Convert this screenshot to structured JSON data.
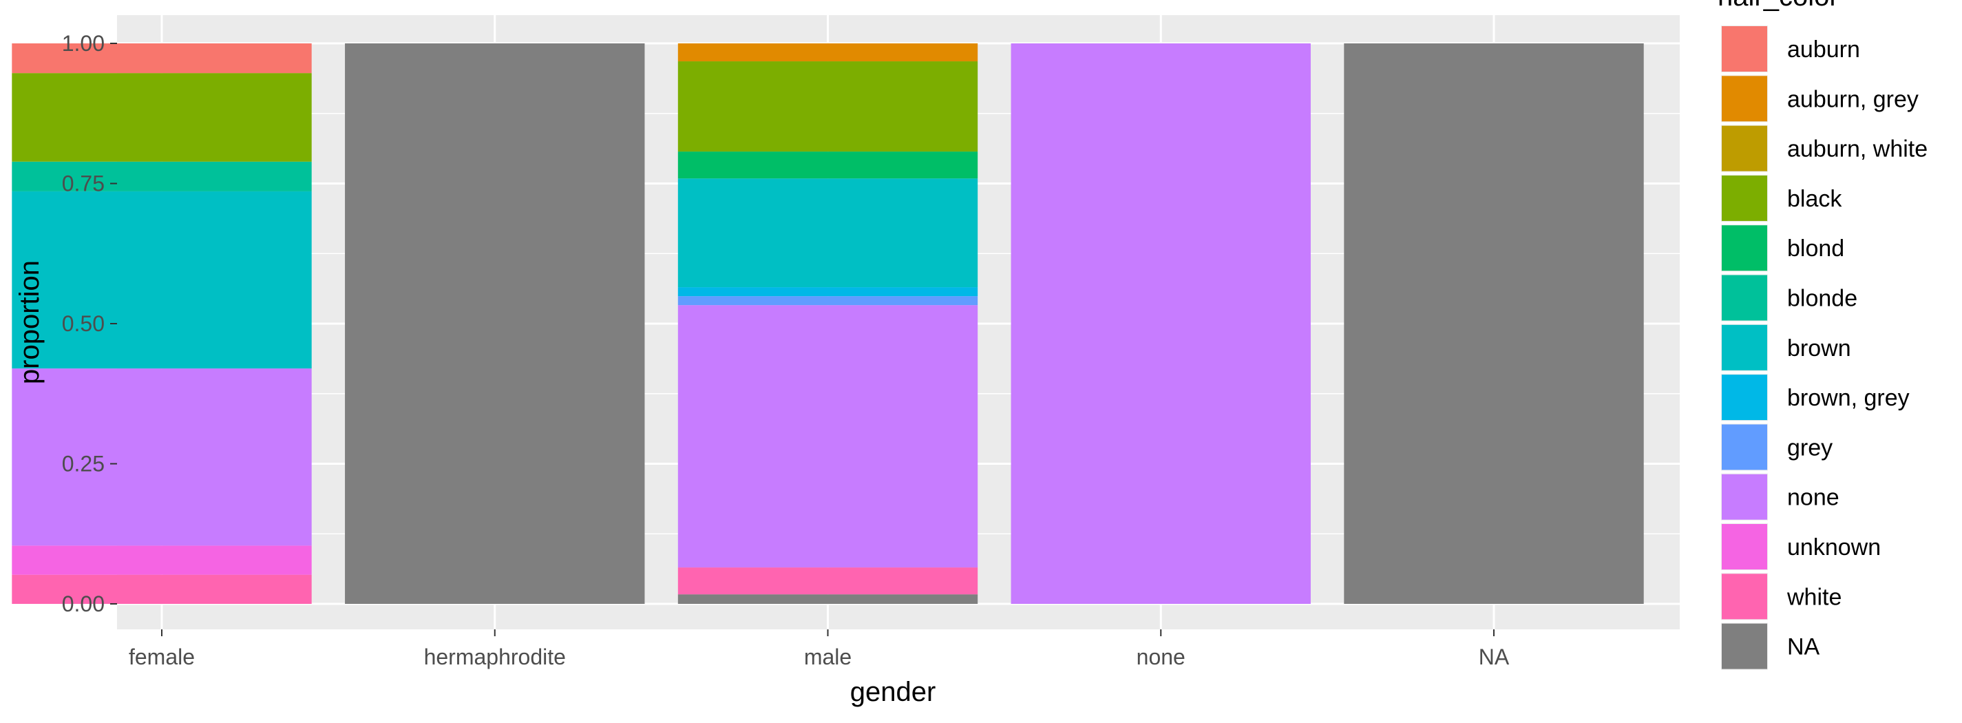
{
  "chart_data": {
    "type": "bar",
    "stacked": true,
    "categories": [
      "female",
      "hermaphrodite",
      "male",
      "none",
      "NA"
    ],
    "xlabel": "gender",
    "ylabel": "proportion",
    "ylim": [
      0,
      1
    ],
    "yticks": [
      "0.00",
      "0.25",
      "0.50",
      "0.75",
      "1.00"
    ],
    "grid": true,
    "legend_position": "right",
    "legend_title": "hair_color",
    "series": [
      {
        "name": "auburn",
        "color": "#F8766D",
        "values": [
          0.053,
          0,
          0,
          0,
          0
        ]
      },
      {
        "name": "auburn, grey",
        "color": "#E18A00",
        "values": [
          0,
          0,
          0.032,
          0,
          0
        ]
      },
      {
        "name": "auburn, white",
        "color": "#BE9C00",
        "values": [
          0,
          0,
          0,
          0,
          0
        ]
      },
      {
        "name": "black",
        "color": "#7CAE00",
        "values": [
          0.158,
          0,
          0.161,
          0,
          0
        ]
      },
      {
        "name": "blond",
        "color": "#00BE67",
        "values": [
          0,
          0,
          0.048,
          0,
          0
        ]
      },
      {
        "name": "blonde",
        "color": "#00C19A",
        "values": [
          0.053,
          0,
          0,
          0,
          0
        ]
      },
      {
        "name": "brown",
        "color": "#00BFC4",
        "values": [
          0.316,
          0,
          0.194,
          0,
          0
        ]
      },
      {
        "name": "brown, grey",
        "color": "#00B8E7",
        "values": [
          0,
          0,
          0.016,
          0,
          0
        ]
      },
      {
        "name": "grey",
        "color": "#619CFF",
        "values": [
          0,
          0,
          0.016,
          0,
          0
        ]
      },
      {
        "name": "none",
        "color": "#C77CFF",
        "values": [
          0.316,
          0,
          0.468,
          1.0,
          0
        ]
      },
      {
        "name": "unknown",
        "color": "#F564E3",
        "values": [
          0.052,
          0,
          0,
          0,
          0
        ]
      },
      {
        "name": "white",
        "color": "#FF64B0",
        "values": [
          0.052,
          0,
          0.048,
          0,
          0
        ]
      },
      {
        "name": "NA",
        "color": "#7F7F7F",
        "values": [
          0,
          1.0,
          0.017,
          0,
          1.0
        ]
      }
    ]
  }
}
